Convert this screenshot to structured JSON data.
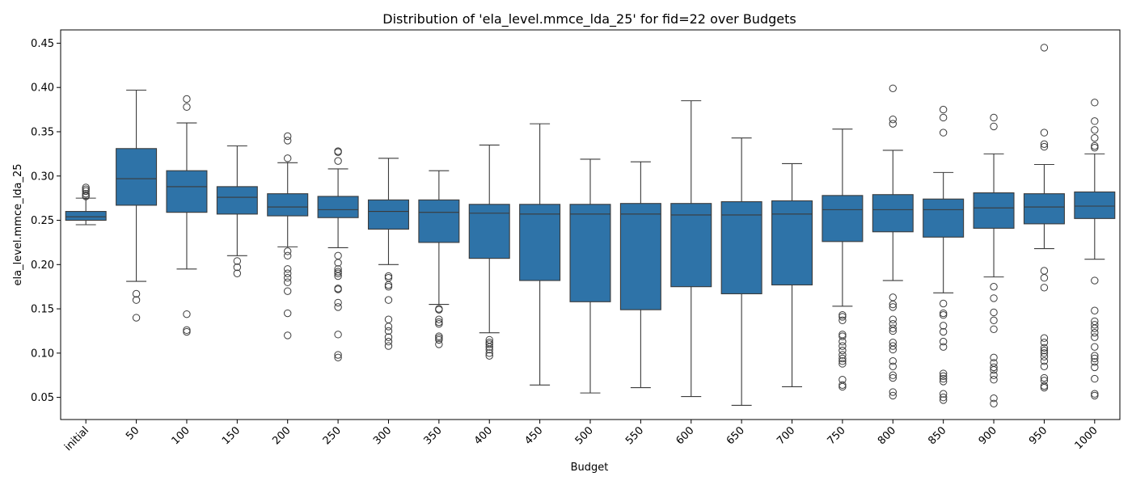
{
  "chart_data": {
    "type": "box",
    "title": "Distribution of 'ela_level.mmce_lda_25' for fid=22 over Budgets",
    "xlabel": "Budget",
    "ylabel": "ela_level.mmce_lda_25",
    "ylim": [
      0.025,
      0.465
    ],
    "yticks": [
      "0.05",
      "0.10",
      "0.15",
      "0.20",
      "0.25",
      "0.30",
      "0.35",
      "0.40",
      "0.45"
    ],
    "grid": false,
    "box_color": "#2e73a8",
    "categories": [
      "initial",
      "50",
      "100",
      "150",
      "200",
      "250",
      "300",
      "350",
      "400",
      "450",
      "500",
      "550",
      "600",
      "650",
      "700",
      "750",
      "800",
      "850",
      "900",
      "950",
      "1000"
    ],
    "boxes": [
      {
        "whislo": 0.245,
        "q1": 0.25,
        "med": 0.254,
        "q3": 0.26,
        "whishi": 0.275,
        "fliers": [
          0.277,
          0.278,
          0.28,
          0.283,
          0.285,
          0.287
        ]
      },
      {
        "whislo": 0.181,
        "q1": 0.267,
        "med": 0.297,
        "q3": 0.331,
        "whishi": 0.397,
        "fliers": [
          0.14,
          0.16,
          0.167
        ]
      },
      {
        "whislo": 0.195,
        "q1": 0.259,
        "med": 0.288,
        "q3": 0.306,
        "whishi": 0.36,
        "fliers": [
          0.124,
          0.126,
          0.144,
          0.378,
          0.387
        ]
      },
      {
        "whislo": 0.21,
        "q1": 0.257,
        "med": 0.276,
        "q3": 0.288,
        "whishi": 0.334,
        "fliers": [
          0.19,
          0.197,
          0.204
        ]
      },
      {
        "whislo": 0.22,
        "q1": 0.255,
        "med": 0.265,
        "q3": 0.28,
        "whishi": 0.315,
        "fliers": [
          0.12,
          0.145,
          0.17,
          0.18,
          0.185,
          0.19,
          0.195,
          0.21,
          0.215,
          0.32,
          0.34,
          0.345
        ]
      },
      {
        "whislo": 0.219,
        "q1": 0.253,
        "med": 0.262,
        "q3": 0.277,
        "whishi": 0.308,
        "fliers": [
          0.095,
          0.098,
          0.121,
          0.152,
          0.157,
          0.172,
          0.173,
          0.187,
          0.19,
          0.192,
          0.195,
          0.202,
          0.21,
          0.317,
          0.327,
          0.328
        ]
      },
      {
        "whislo": 0.2,
        "q1": 0.24,
        "med": 0.26,
        "q3": 0.273,
        "whishi": 0.32,
        "fliers": [
          0.108,
          0.113,
          0.118,
          0.125,
          0.13,
          0.138,
          0.16,
          0.175,
          0.177,
          0.185,
          0.187
        ]
      },
      {
        "whislo": 0.155,
        "q1": 0.225,
        "med": 0.259,
        "q3": 0.273,
        "whishi": 0.306,
        "fliers": [
          0.11,
          0.115,
          0.117,
          0.119,
          0.133,
          0.135,
          0.138,
          0.149,
          0.15
        ]
      },
      {
        "whislo": 0.123,
        "q1": 0.207,
        "med": 0.258,
        "q3": 0.268,
        "whishi": 0.335,
        "fliers": [
          0.097,
          0.1,
          0.104,
          0.107,
          0.11,
          0.112,
          0.115
        ]
      },
      {
        "whislo": 0.064,
        "q1": 0.182,
        "med": 0.257,
        "q3": 0.268,
        "whishi": 0.359,
        "fliers": []
      },
      {
        "whislo": 0.055,
        "q1": 0.158,
        "med": 0.257,
        "q3": 0.268,
        "whishi": 0.319,
        "fliers": []
      },
      {
        "whislo": 0.061,
        "q1": 0.149,
        "med": 0.257,
        "q3": 0.269,
        "whishi": 0.316,
        "fliers": []
      },
      {
        "whislo": 0.051,
        "q1": 0.175,
        "med": 0.256,
        "q3": 0.269,
        "whishi": 0.385,
        "fliers": []
      },
      {
        "whislo": 0.041,
        "q1": 0.167,
        "med": 0.256,
        "q3": 0.271,
        "whishi": 0.343,
        "fliers": []
      },
      {
        "whislo": 0.062,
        "q1": 0.177,
        "med": 0.257,
        "q3": 0.272,
        "whishi": 0.314,
        "fliers": []
      },
      {
        "whislo": 0.153,
        "q1": 0.226,
        "med": 0.262,
        "q3": 0.278,
        "whishi": 0.353,
        "fliers": [
          0.062,
          0.064,
          0.07,
          0.088,
          0.091,
          0.094,
          0.098,
          0.103,
          0.108,
          0.113,
          0.119,
          0.121,
          0.137,
          0.141,
          0.143
        ]
      },
      {
        "whislo": 0.182,
        "q1": 0.237,
        "med": 0.262,
        "q3": 0.279,
        "whishi": 0.329,
        "fliers": [
          0.052,
          0.056,
          0.072,
          0.075,
          0.085,
          0.091,
          0.104,
          0.108,
          0.112,
          0.125,
          0.128,
          0.133,
          0.138,
          0.152,
          0.155,
          0.163,
          0.359,
          0.364,
          0.399
        ]
      },
      {
        "whislo": 0.168,
        "q1": 0.231,
        "med": 0.262,
        "q3": 0.274,
        "whishi": 0.304,
        "fliers": [
          0.047,
          0.05,
          0.054,
          0.068,
          0.071,
          0.074,
          0.077,
          0.107,
          0.113,
          0.124,
          0.131,
          0.143,
          0.145,
          0.156,
          0.349,
          0.366,
          0.375
        ]
      },
      {
        "whislo": 0.186,
        "q1": 0.241,
        "med": 0.264,
        "q3": 0.281,
        "whishi": 0.325,
        "fliers": [
          0.043,
          0.049,
          0.07,
          0.075,
          0.081,
          0.084,
          0.089,
          0.095,
          0.127,
          0.137,
          0.146,
          0.162,
          0.175,
          0.356,
          0.366
        ]
      },
      {
        "whislo": 0.218,
        "q1": 0.246,
        "med": 0.265,
        "q3": 0.28,
        "whishi": 0.313,
        "fliers": [
          0.061,
          0.063,
          0.069,
          0.072,
          0.085,
          0.091,
          0.096,
          0.1,
          0.103,
          0.106,
          0.112,
          0.117,
          0.174,
          0.185,
          0.193,
          0.333,
          0.336,
          0.349,
          0.445
        ]
      },
      {
        "whislo": 0.206,
        "q1": 0.252,
        "med": 0.266,
        "q3": 0.282,
        "whishi": 0.325,
        "fliers": [
          0.052,
          0.054,
          0.071,
          0.084,
          0.09,
          0.094,
          0.097,
          0.107,
          0.118,
          0.123,
          0.128,
          0.132,
          0.136,
          0.148,
          0.182,
          0.332,
          0.334,
          0.343,
          0.352,
          0.362,
          0.383
        ]
      }
    ]
  }
}
